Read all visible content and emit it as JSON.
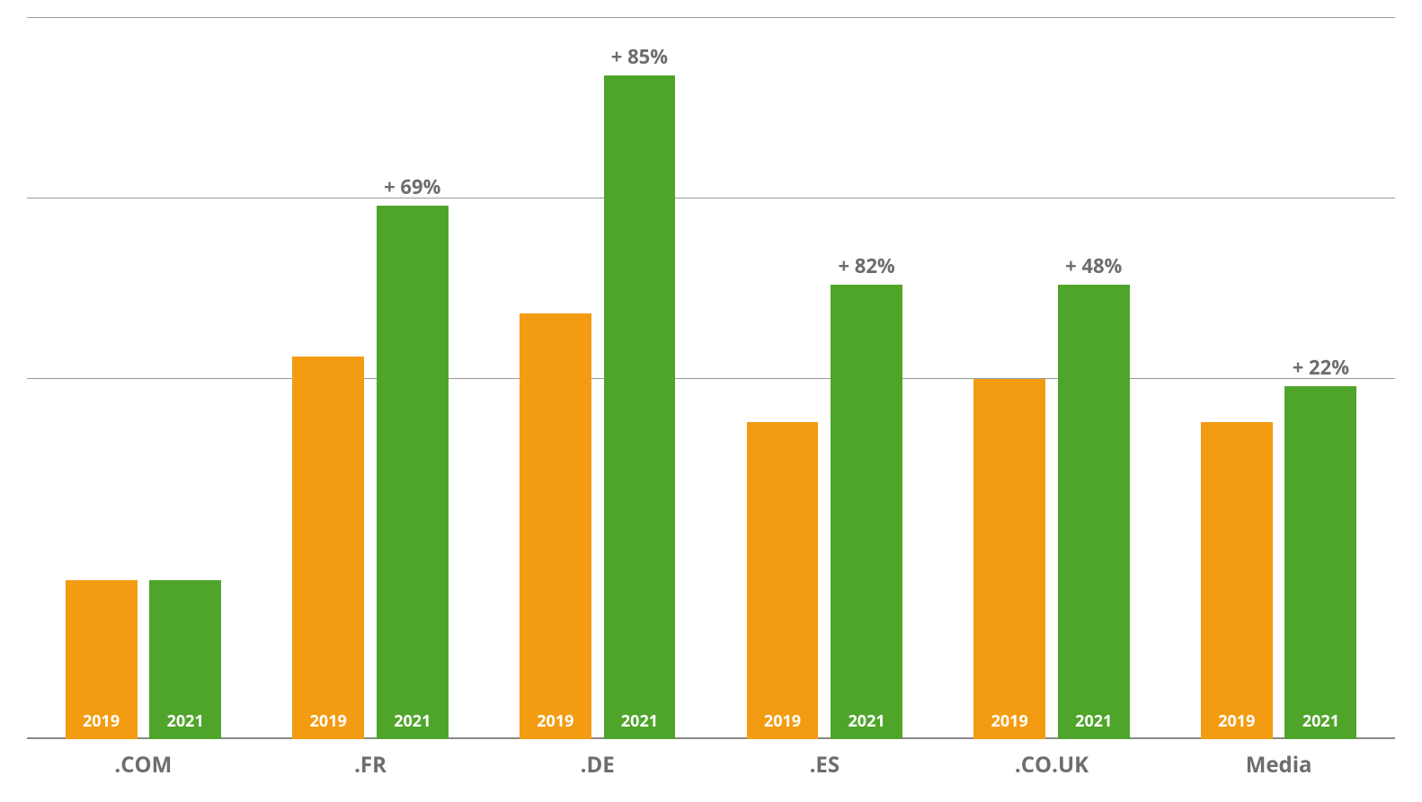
{
  "chart": {
    "type": "bar",
    "background_color": "#ffffff",
    "y_max": 100,
    "gridlines": [
      {
        "value": 0,
        "color": "#888888",
        "width": 2
      },
      {
        "value": 50,
        "color": "#999999",
        "width": 1
      },
      {
        "value": 75,
        "color": "#999999",
        "width": 1
      },
      {
        "value": 100,
        "color": "#999999",
        "width": 1
      }
    ],
    "series_labels": {
      "a": "2019",
      "b": "2021"
    },
    "series_colors": {
      "a": "#f39c12",
      "b": "#4fa52a"
    },
    "bar_inner_label_fontsize": 18,
    "bar_inner_label_color": "#ffffff",
    "delta_label_color": "#6d6d6d",
    "delta_label_fontsize": 22,
    "xlabel_color": "#6d6d6d",
    "xlabel_fontsize": 24,
    "bar_width_pct": 35,
    "bar_gap_pct": 6,
    "group_width_pct": 15,
    "groups": [
      {
        "label": ".COM",
        "a": 22,
        "b": 22,
        "delta": ""
      },
      {
        "label": ".FR",
        "a": 53,
        "b": 74,
        "delta": "+ 69%"
      },
      {
        "label": ".DE",
        "a": 59,
        "b": 92,
        "delta": "+ 85%"
      },
      {
        "label": ".ES",
        "a": 44,
        "b": 63,
        "delta": "+ 82%"
      },
      {
        "label": ".CO.UK",
        "a": 50,
        "b": 63,
        "delta": "+ 48%"
      },
      {
        "label": "Media",
        "a": 44,
        "b": 49,
        "delta": "+ 22%"
      }
    ]
  }
}
